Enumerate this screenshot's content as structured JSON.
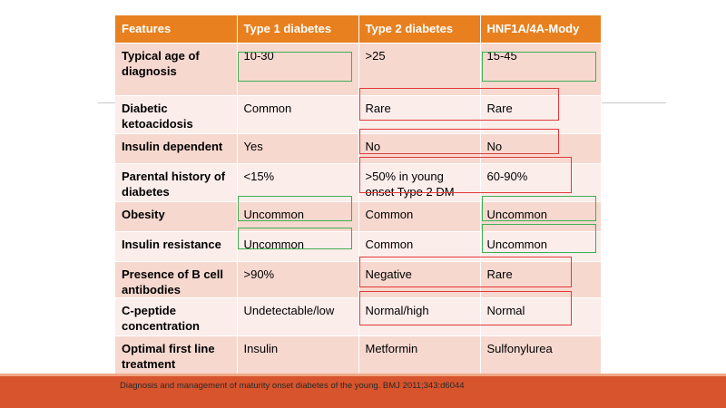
{
  "table": {
    "headers": [
      "Features",
      "Type 1 diabetes",
      "Type 2 diabetes",
      "HNF1A/4A-Mody"
    ],
    "rows": [
      [
        "Typical age of diagnosis",
        "10-30",
        ">25",
        "15-45"
      ],
      [
        "Diabetic ketoacidosis",
        "Common",
        "Rare",
        "Rare"
      ],
      [
        "Insulin dependent",
        "Yes",
        "No",
        "No"
      ],
      [
        "Parental history of diabetes",
        "<15%",
        ">50% in young onset Type 2 DM",
        "60-90%"
      ],
      [
        "Obesity",
        "Uncommon",
        "Common",
        "Uncommon"
      ],
      [
        "Insulin resistance",
        "Uncommon",
        "Common",
        "Uncommon"
      ],
      [
        "Presence of B cell antibodies",
        ">90%",
        "Negative",
        "Rare"
      ],
      [
        "C-peptide concentration",
        "Undetectable/low",
        "Normal/high",
        "Normal"
      ],
      [
        "Optimal first line treatment",
        "Insulin",
        "Metformin",
        "Sulfonylurea"
      ]
    ]
  },
  "highlights": {
    "green_color": "#3fae52",
    "red_color": "#e03a3a"
  },
  "footer": {
    "citation": "Diagnosis and management of maturity onset diabetes of the  young.  BMJ 2011;343:d6044",
    "bar_color": "#d7542c"
  }
}
